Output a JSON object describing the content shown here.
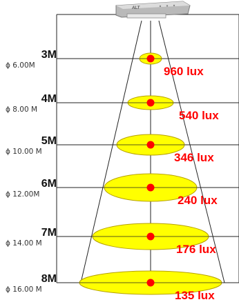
{
  "fixture": {
    "brand_mark": "ALT",
    "icon": "floodlight-fixture-icon"
  },
  "colors": {
    "beam_fill": "#ffff00",
    "beam_stroke": "#b5a000",
    "center_dot": "#ff0000",
    "lux_text": "#ff0000",
    "line": "#222222"
  },
  "levels": [
    {
      "distance": "3M",
      "diameter": "ϕ 6.00M",
      "lux": "960 lux",
      "diameter_m": 6,
      "height_m": 3
    },
    {
      "distance": "4M",
      "diameter": "ϕ 8.00 M",
      "lux": "540 lux",
      "diameter_m": 8,
      "height_m": 4
    },
    {
      "distance": "5M",
      "diameter": "ϕ 10.00 M",
      "lux": "346 lux",
      "diameter_m": 10,
      "height_m": 5
    },
    {
      "distance": "6M",
      "diameter": "ϕ 12.00M",
      "lux": "240 lux",
      "diameter_m": 12,
      "height_m": 6
    },
    {
      "distance": "7M",
      "diameter": "ϕ 14.00 M",
      "lux": "176 lux",
      "diameter_m": 14,
      "height_m": 7
    },
    {
      "distance": "8M",
      "diameter": "ϕ 16.00 M",
      "lux": "135 lux",
      "diameter_m": 16,
      "height_m": 8
    }
  ]
}
